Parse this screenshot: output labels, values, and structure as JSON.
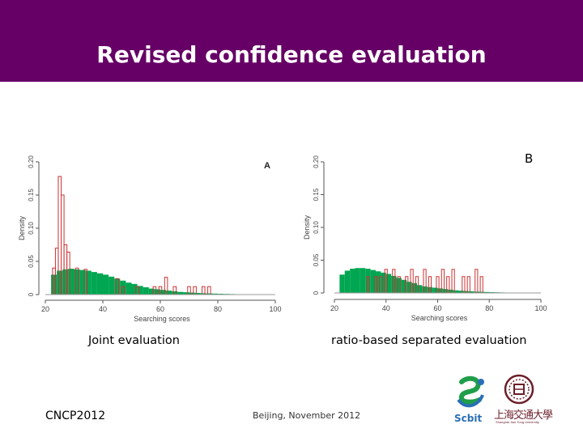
{
  "slide": {
    "title": "Revised confidence evaluation",
    "caption_left": "Joint evaluation",
    "caption_right": "ratio-based separated evaluation",
    "footer_left": "CNCP2012",
    "footer_center": "Beijing, November 2012",
    "logo_scbit_text": "Scbit",
    "logo_sjtu_text": "上海交通大學",
    "logo_sjtu_subtext": "Shanghai Jiao Tong University",
    "colors": {
      "header": "#660066",
      "green": "#00a651",
      "red": "#cc3333"
    }
  },
  "chart_data": [
    {
      "type": "histogram",
      "panel_label": "A",
      "xlabel": "Searching scores",
      "ylabel": "Density",
      "xlim": [
        20,
        100
      ],
      "ylim": [
        0,
        0.2
      ],
      "xticks": [
        "20",
        "40",
        "60",
        "80",
        "100"
      ],
      "yticks": [
        "0",
        "0.05",
        "0.10",
        "0.15",
        "0.20"
      ],
      "series": [
        {
          "style": "filled green bars",
          "x": [
            23,
            25,
            27,
            29,
            31,
            33,
            35,
            37,
            39,
            41,
            43,
            45,
            47,
            49,
            51,
            53,
            55,
            57,
            59,
            61,
            63,
            65,
            67,
            69,
            71,
            73,
            75,
            77,
            79,
            81,
            83,
            85,
            87,
            89,
            91,
            93,
            95,
            97,
            99
          ],
          "values": [
            0.03,
            0.036,
            0.038,
            0.039,
            0.038,
            0.037,
            0.036,
            0.034,
            0.032,
            0.03,
            0.027,
            0.024,
            0.021,
            0.018,
            0.016,
            0.013,
            0.011,
            0.009,
            0.008,
            0.007,
            0.006,
            0.005,
            0.004,
            0.0035,
            0.003,
            0.0025,
            0.002,
            0.0018,
            0.0015,
            0.0012,
            0.001,
            0.0008,
            0.0006,
            0.0005,
            0.0004,
            0.0003,
            0.0002,
            0.0002,
            0.0001
          ]
        },
        {
          "style": "red outlined bars",
          "x": [
            23,
            24,
            25,
            26,
            27,
            28,
            31,
            34,
            45,
            47,
            52,
            58,
            60,
            62,
            65,
            70,
            72,
            75,
            77
          ],
          "values": [
            0.04,
            0.07,
            0.178,
            0.15,
            0.075,
            0.064,
            0.04,
            0.038,
            0.024,
            0.012,
            0.012,
            0.012,
            0.012,
            0.026,
            0.012,
            0.012,
            0.012,
            0.012,
            0.012
          ]
        }
      ]
    },
    {
      "type": "histogram",
      "panel_label": "B",
      "xlabel": "Searching scores",
      "ylabel": "Density",
      "xlim": [
        20,
        100
      ],
      "ylim": [
        0,
        0.2
      ],
      "xticks": [
        "20",
        "40",
        "60",
        "80",
        "100"
      ],
      "yticks": [
        "0",
        "0.05",
        "0.10",
        "0.15",
        "0.20"
      ],
      "series": [
        {
          "style": "filled green bars",
          "x": [
            23,
            25,
            27,
            29,
            31,
            33,
            35,
            37,
            39,
            41,
            43,
            45,
            47,
            49,
            51,
            53,
            55,
            57,
            59,
            61,
            63,
            65,
            67,
            69,
            71,
            73,
            75,
            77,
            79,
            81,
            83,
            85,
            87,
            89,
            91,
            93,
            95,
            97,
            99
          ],
          "values": [
            0.028,
            0.034,
            0.037,
            0.038,
            0.038,
            0.037,
            0.035,
            0.033,
            0.031,
            0.029,
            0.026,
            0.023,
            0.02,
            0.017,
            0.015,
            0.012,
            0.01,
            0.009,
            0.008,
            0.007,
            0.006,
            0.005,
            0.004,
            0.0035,
            0.003,
            0.0025,
            0.002,
            0.0018,
            0.0015,
            0.0012,
            0.001,
            0.0008,
            0.0006,
            0.0005,
            0.0004,
            0.0003,
            0.0002,
            0.0002,
            0.0001
          ]
        },
        {
          "style": "red outlined bars",
          "x": [
            33,
            36,
            38,
            40,
            43,
            45,
            48,
            50,
            52,
            55,
            57,
            60,
            62,
            64,
            66,
            70,
            72,
            75,
            77
          ],
          "values": [
            0.025,
            0.025,
            0.025,
            0.036,
            0.036,
            0.025,
            0.025,
            0.036,
            0.025,
            0.036,
            0.025,
            0.025,
            0.036,
            0.025,
            0.036,
            0.025,
            0.025,
            0.036,
            0.025
          ]
        }
      ]
    }
  ]
}
